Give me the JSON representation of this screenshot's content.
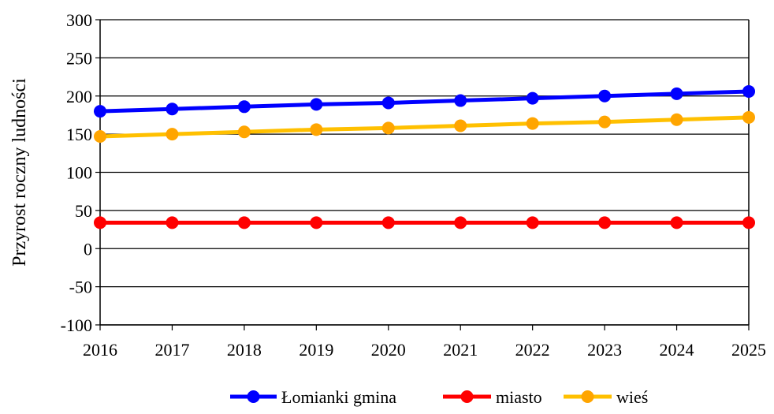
{
  "chart_data": {
    "type": "line",
    "title": "",
    "xlabel": "",
    "ylabel": "Przyrost roczny ludności",
    "x": [
      2016,
      2017,
      2018,
      2019,
      2020,
      2021,
      2022,
      2023,
      2024,
      2025
    ],
    "x_tick_labels": [
      "2016",
      "2017",
      "2018",
      "2019",
      "2020",
      "2021",
      "2022",
      "2023",
      "2024",
      "2025"
    ],
    "ylim": [
      -100,
      300
    ],
    "y_ticks": [
      300,
      250,
      200,
      150,
      100,
      50,
      0,
      -50,
      -100
    ],
    "y_tick_labels": [
      "300",
      "250",
      "200",
      "150",
      "100",
      "50",
      "0",
      "-50",
      "-100"
    ],
    "grid": "horizontal",
    "legend": "bottom",
    "series": [
      {
        "name": "Łomianki gmina",
        "line_color": "#0000ff",
        "marker_color": "#0000ff",
        "values": [
          180,
          183,
          186,
          189,
          191,
          194,
          197,
          200,
          203,
          206
        ]
      },
      {
        "name": "miasto",
        "line_color": "#ff0000",
        "marker_color": "#ff0000",
        "values": [
          34,
          34,
          34,
          34,
          34,
          34,
          34,
          34,
          34,
          34
        ]
      },
      {
        "name": "wieś",
        "line_color": "#ffc000",
        "marker_color": "#ffa500",
        "values": [
          147,
          150,
          153,
          156,
          158,
          161,
          164,
          166,
          169,
          172
        ]
      }
    ]
  }
}
